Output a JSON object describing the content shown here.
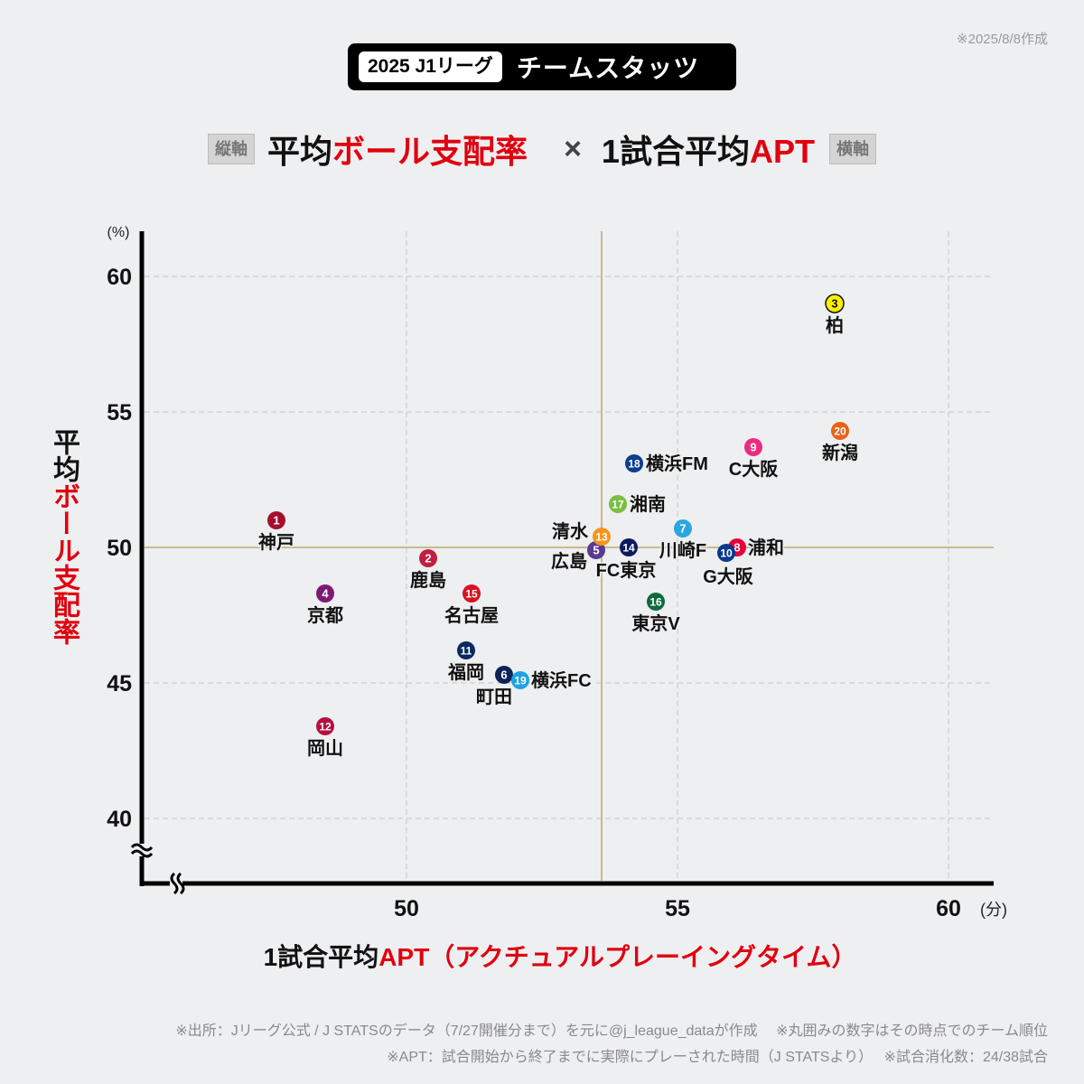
{
  "header": {
    "date_note": "※2025/8/8作成",
    "badge": "2025 J1リーグ",
    "title": "チームスタッツ"
  },
  "subtitle": {
    "v_axis_tag": "縦軸",
    "v_metric_black": "平均",
    "v_metric_red": "ボール支配率",
    "times": "×",
    "h_metric_black": "1試合平均",
    "h_metric_red": "APT",
    "h_axis_tag": "横軸"
  },
  "chart_data": {
    "type": "scatter",
    "title": "平均ボール支配率 × 1試合平均APT",
    "xlabel": "1試合平均APT（アクチュアルプレーイングタイム）",
    "xlabel_black": "1試合平均",
    "xlabel_red": "APT（アクチュアルプレーイングタイム）",
    "ylabel": "平均ボール支配率",
    "ylabel_black": "平均",
    "ylabel_red": "ボール支配率",
    "x_unit": "(分)",
    "y_unit": "(%)",
    "xlim": [
      45.1,
      60.8
    ],
    "ylim": [
      37.6,
      61.7
    ],
    "xticks": [
      50,
      55,
      60
    ],
    "yticks": [
      40,
      45,
      50,
      55,
      60
    ],
    "axis_breaks": true,
    "grid": true,
    "mean_lines": {
      "x": 53.6,
      "y": 50.0
    },
    "colors": {
      "accent_red": "#e0000f",
      "mean_line": "#c9ba8c",
      "grid": "#c6c6c6"
    },
    "points": [
      {
        "rank": 1,
        "team": "神戸",
        "x": 47.6,
        "y": 51.0,
        "color": "#a50f2d"
      },
      {
        "rank": 2,
        "team": "鹿島",
        "x": 50.4,
        "y": 49.6,
        "color": "#c21d42"
      },
      {
        "rank": 3,
        "team": "柏",
        "x": 57.9,
        "y": 59.0,
        "color": "#fff000"
      },
      {
        "rank": 4,
        "team": "京都",
        "x": 48.5,
        "y": 48.3,
        "color": "#7b1a73"
      },
      {
        "rank": 5,
        "team": "広島",
        "x": 53.5,
        "y": 49.9,
        "color": "#5a3a91"
      },
      {
        "rank": 6,
        "team": "町田",
        "x": 51.8,
        "y": 45.3,
        "color": "#0c2357"
      },
      {
        "rank": 7,
        "team": "川崎F",
        "x": 55.1,
        "y": 50.7,
        "color": "#2aa7e1"
      },
      {
        "rank": 8,
        "team": "浦和",
        "x": 56.1,
        "y": 50.0,
        "color": "#e4003a"
      },
      {
        "rank": 9,
        "team": "C大阪",
        "x": 56.4,
        "y": 53.7,
        "color": "#ec2a80"
      },
      {
        "rank": 10,
        "team": "G大阪",
        "x": 55.9,
        "y": 49.8,
        "color": "#053a8e"
      },
      {
        "rank": 11,
        "team": "福岡",
        "x": 51.1,
        "y": 46.2,
        "color": "#0b2a5f"
      },
      {
        "rank": 12,
        "team": "岡山",
        "x": 48.5,
        "y": 43.4,
        "color": "#b4103f"
      },
      {
        "rank": 13,
        "team": "清水",
        "x": 53.6,
        "y": 50.4,
        "color": "#f7941d"
      },
      {
        "rank": 14,
        "team": "FC東京",
        "x": 54.1,
        "y": 50.0,
        "color": "#0e1a5e"
      },
      {
        "rank": 15,
        "team": "名古屋",
        "x": 51.2,
        "y": 48.3,
        "color": "#d8121f"
      },
      {
        "rank": 16,
        "team": "東京V",
        "x": 54.6,
        "y": 48.0,
        "color": "#0f6b3c"
      },
      {
        "rank": 17,
        "team": "湘南",
        "x": 53.9,
        "y": 51.6,
        "color": "#7bbf42"
      },
      {
        "rank": 18,
        "team": "横浜FM",
        "x": 54.2,
        "y": 53.1,
        "color": "#0b3d8f"
      },
      {
        "rank": 19,
        "team": "横浜FC",
        "x": 52.1,
        "y": 45.1,
        "color": "#1fa2e2"
      },
      {
        "rank": 20,
        "team": "新潟",
        "x": 58.0,
        "y": 54.3,
        "color": "#e8621a"
      }
    ]
  },
  "footer": {
    "line1": "※出所：Jリーグ公式 / J STATSのデータ（7/27開催分まで）を元に@j_league_dataが作成　 ※丸囲みの数字はその時点でのチーム順位",
    "line2": "※APT：試合開始から終了までに実際にプレーされた時間（J STATSより）　 ※試合消化数：24/38試合"
  }
}
